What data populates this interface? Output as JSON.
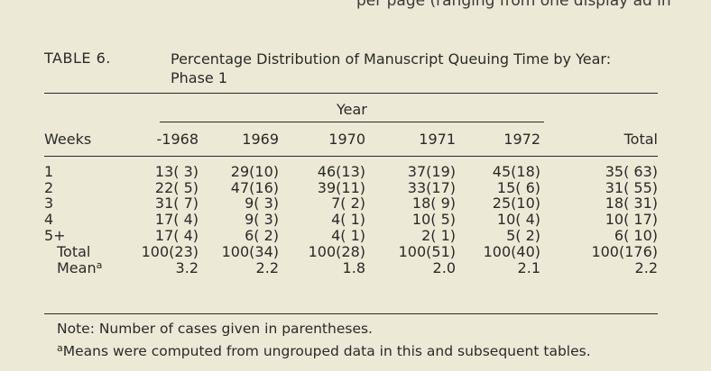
{
  "cutoff_text": "per page (ranging from one display ad in",
  "table": {
    "label": "TABLE 6.",
    "caption_line1": "Percentage Distribution of Manuscript Queuing Time by Year:",
    "caption_line2": "Phase 1",
    "year_header": "Year",
    "columns": [
      "Weeks",
      "-1968",
      "1969",
      "1970",
      "1971",
      "1972",
      "Total"
    ],
    "rows": [
      {
        "label": "1",
        "cells": [
          "13( 3)",
          "29(10)",
          "46(13)",
          "37(19)",
          "45(18)",
          "35( 63)"
        ]
      },
      {
        "label": "2",
        "cells": [
          "22( 5)",
          "47(16)",
          "39(11)",
          "33(17)",
          "15( 6)",
          "31( 55)"
        ]
      },
      {
        "label": "3",
        "cells": [
          "31( 7)",
          "9( 3)",
          "7( 2)",
          "18( 9)",
          "25(10)",
          "18( 31)"
        ]
      },
      {
        "label": "4",
        "cells": [
          "17( 4)",
          "9( 3)",
          "4( 1)",
          "10( 5)",
          "10( 4)",
          "10( 17)"
        ]
      },
      {
        "label": "5+",
        "cells": [
          "17( 4)",
          "6( 2)",
          "4( 1)",
          "2( 1)",
          "5( 2)",
          "6( 10)"
        ]
      },
      {
        "label": "Total",
        "cells": [
          "100(23)",
          "100(34)",
          "100(28)",
          "100(51)",
          "100(40)",
          "100(176)"
        ]
      },
      {
        "label": "Mean",
        "label_sup": "a",
        "cells": [
          "3.2",
          "2.2",
          "1.8",
          "2.0",
          "2.1",
          "2.2"
        ]
      }
    ],
    "note": "Note: Number of cases given in parentheses.",
    "footnote_marker": "a",
    "footnote_text": "Means were computed from ungrouped data in this and subsequent tables."
  }
}
